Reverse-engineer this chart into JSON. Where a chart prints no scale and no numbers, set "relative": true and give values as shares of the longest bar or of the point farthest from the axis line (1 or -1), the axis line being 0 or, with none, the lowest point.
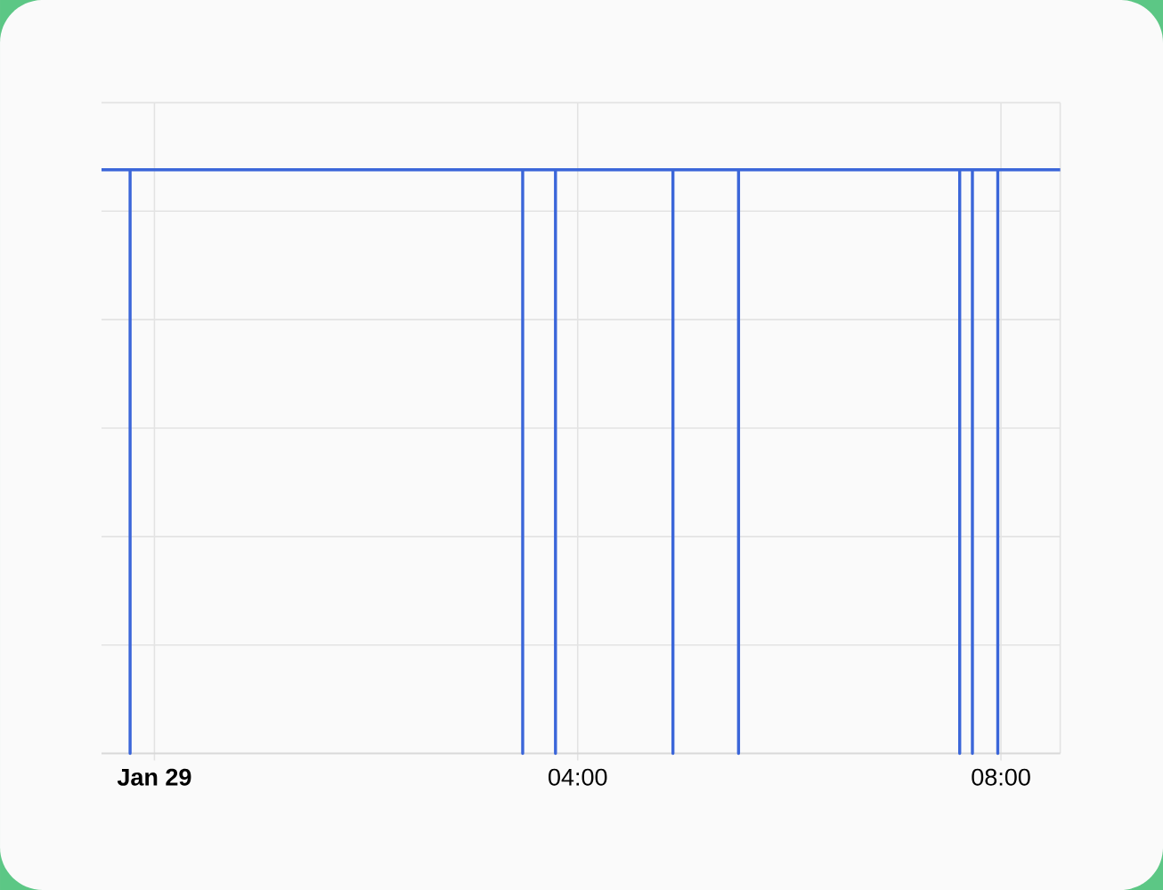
{
  "chart_data": {
    "type": "line",
    "relative": true,
    "color": "#3b66d9",
    "grid": true,
    "x": [
      -0.5,
      -0.23,
      -0.23,
      -0.23,
      3.48,
      3.48,
      3.48,
      3.79,
      3.79,
      3.79,
      4.9,
      4.9,
      4.9,
      5.52,
      5.52,
      5.52,
      7.61,
      7.61,
      7.61,
      7.73,
      7.73,
      7.73,
      7.97,
      7.97,
      7.97,
      8.56
    ],
    "values": [
      1,
      1,
      0,
      1,
      1,
      0,
      1,
      1,
      0,
      1,
      1,
      0,
      1,
      1,
      0,
      1,
      1,
      0,
      1,
      1,
      0,
      1,
      1,
      0,
      1,
      1
    ],
    "xlim": [
      -0.5,
      8.56
    ],
    "xticks": [
      {
        "value": 0,
        "label": "Jan 29"
      },
      {
        "value": 4,
        "label": "04:00"
      },
      {
        "value": 8,
        "label": "08:00"
      }
    ]
  }
}
